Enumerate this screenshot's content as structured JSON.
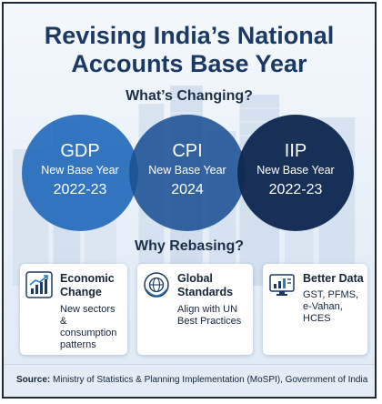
{
  "title": {
    "line1": "Revising India’s National",
    "line2": "Accounts Base Year"
  },
  "sections": {
    "changing": "What’s Changing?",
    "rebasing": "Why Rebasing?"
  },
  "circles": [
    {
      "abbr": "GDP",
      "label": "New Base Year",
      "year": "2022-23",
      "color": "#266cba"
    },
    {
      "abbr": "CPI",
      "label": "New Base Year",
      "year": "2024",
      "color": "#1b5094"
    },
    {
      "abbr": "IIP",
      "label": "New Base Year",
      "year": "2022-23",
      "color": "#102950"
    }
  ],
  "cards": [
    {
      "icon": "growth-chart-icon",
      "head": [
        "Economic",
        "Change"
      ],
      "desc": [
        "New sectors &",
        "consumption",
        "patterns"
      ]
    },
    {
      "icon": "globe-icon",
      "head": [
        "Global",
        "Standards"
      ],
      "desc": [
        "Align with UN",
        "Best Practices"
      ]
    },
    {
      "icon": "dashboard-monitor-icon",
      "head": [
        "Better Data"
      ],
      "desc": [
        "GST, PFMS,",
        "e-Vahan,",
        "HCES"
      ]
    }
  ],
  "source": {
    "label": "Source:",
    "text": "Ministry of Statistics & Planning Implementation (MoSPI), Government of India"
  }
}
